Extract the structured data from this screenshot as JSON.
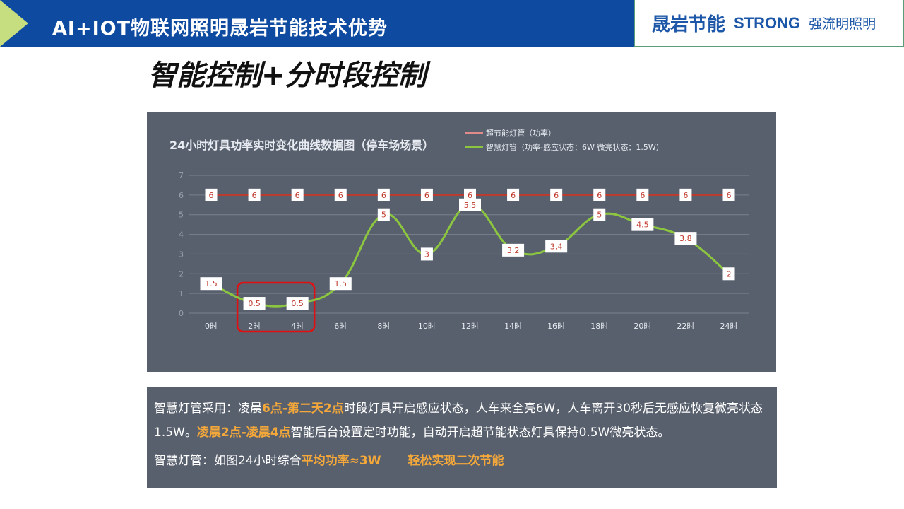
{
  "header": {
    "title": "AI+IOT物联网照明晟岩节能技术优势"
  },
  "logo": {
    "brand1": "晟岩节能",
    "brand2": "STRONG",
    "brand2_cn": "强流明照明"
  },
  "subtitle": "智能控制+分时段控制",
  "chart_data": {
    "type": "line",
    "title": "24小时灯具功率实时变化曲线数据图（停车场场景）",
    "categories": [
      "0时",
      "2时",
      "4时",
      "6时",
      "8时",
      "10时",
      "12时",
      "14时",
      "16时",
      "18时",
      "20时",
      "22时",
      "24时"
    ],
    "ylim": [
      0,
      7
    ],
    "yticks": [
      0,
      1,
      2,
      3,
      4,
      5,
      6,
      7
    ],
    "grid": true,
    "legend": "top-right",
    "series": [
      {
        "name": "超节能灯管（功率）",
        "color": "#e08a8a",
        "values": [
          6,
          6,
          6,
          6,
          6,
          6,
          6,
          6,
          6,
          6,
          6,
          6,
          6
        ]
      },
      {
        "name": "智慧灯管（功率-感应状态：6W      微亮状态：1.5W）",
        "color": "#8cc63f",
        "values": [
          1.5,
          0.5,
          0.5,
          1.5,
          5,
          3,
          5.5,
          3.2,
          3.4,
          5,
          4.5,
          3.8,
          2
        ]
      }
    ],
    "highlight": {
      "categories": [
        "2时",
        "4时"
      ],
      "color": "#e01010"
    }
  },
  "note": {
    "p1a": "智慧灯管采用：凌晨",
    "p1b": "6点-第二天2点",
    "p1c": "时段灯具开启感应状态，人车来全亮6W，人车离开30秒后无感应恢复微亮状态1.5W。",
    "p1d": "凌晨2点-凌晨4点",
    "p1e": "智能后台设置定时功能，自动开启超节能状态灯具保持0.5W微亮状态。",
    "p2a": "智慧灯管：如图24小时综合",
    "p2b": "平均功率≈3W",
    "p2c": "轻松实现二次节能"
  }
}
